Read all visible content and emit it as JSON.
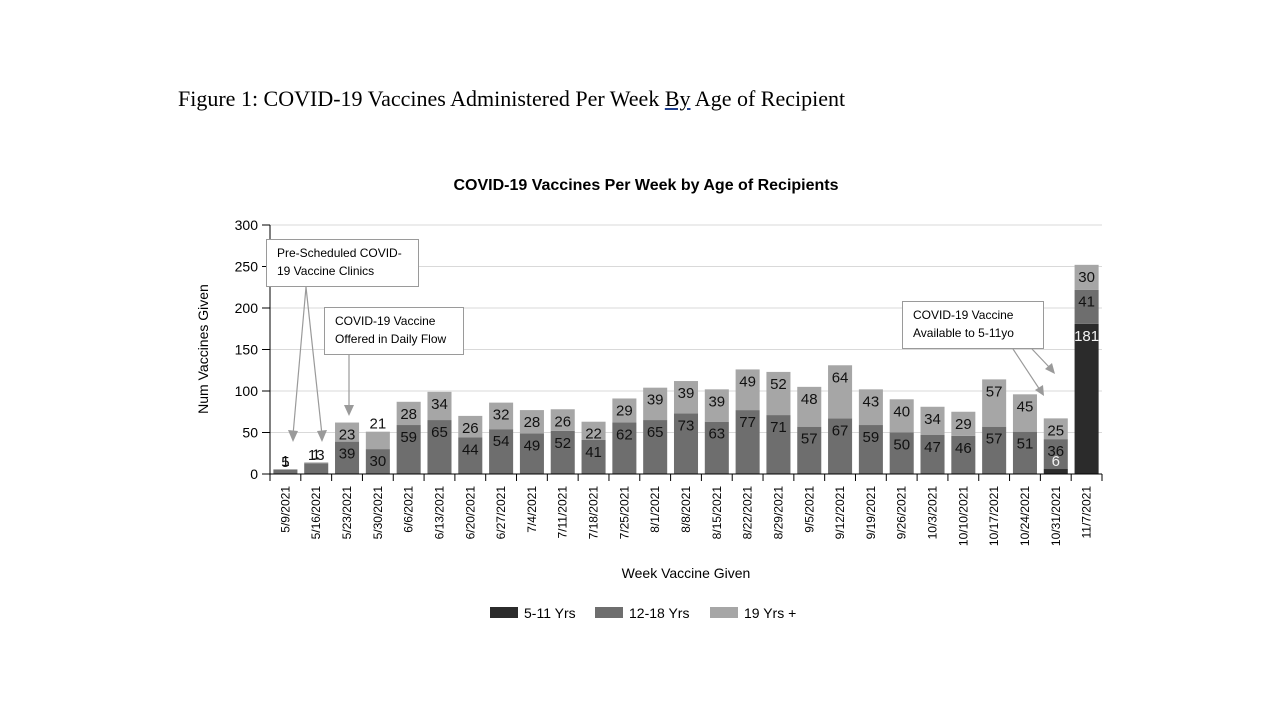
{
  "caption": {
    "before": "Figure 1: COVID-19 Vaccines Administered Per Week ",
    "underlined": "By",
    "after": " Age of Recipient"
  },
  "annotations": {
    "pre_scheduled": "Pre-Scheduled COVID-19 Vaccine Clinics",
    "daily_flow": "COVID-19 Vaccine Offered in Daily Flow",
    "age_5_11": "COVID-19 Vaccine Available to 5-11yo"
  },
  "colors": {
    "5-11 Yrs": "#2b2b2b",
    "12-18 Yrs": "#6e6e6e",
    "19 Yrs +": "#a6a6a6",
    "grid": "#d9d9d9",
    "axis": "#000000"
  },
  "chart_data": {
    "type": "bar",
    "stacked": true,
    "title": "COVID-19 Vaccines Per Week by Age of Recipients",
    "xlabel": "Week Vaccine Given",
    "ylabel": "Num Vaccines Given",
    "ylim": [
      0,
      300
    ],
    "yticks": [
      0,
      50,
      100,
      150,
      200,
      250,
      300
    ],
    "grid": true,
    "legend_position": "bottom",
    "categories": [
      "5/9/2021",
      "5/16/2021",
      "5/23/2021",
      "5/30/2021",
      "6/6/2021",
      "6/13/2021",
      "6/20/2021",
      "6/27/2021",
      "7/4/2021",
      "7/11/2021",
      "7/18/2021",
      "7/25/2021",
      "8/1/2021",
      "8/8/2021",
      "8/15/2021",
      "8/22/2021",
      "8/29/2021",
      "9/5/2021",
      "9/12/2021",
      "9/19/2021",
      "9/26/2021",
      "10/3/2021",
      "10/10/2021",
      "10/17/2021",
      "10/24/2021",
      "10/31/2021",
      "11/7/2021"
    ],
    "series": [
      {
        "name": "5-11 Yrs",
        "values": [
          0,
          0,
          0,
          0,
          0,
          0,
          0,
          0,
          0,
          0,
          0,
          0,
          0,
          0,
          0,
          0,
          0,
          0,
          0,
          0,
          0,
          0,
          0,
          0,
          0,
          6,
          181
        ]
      },
      {
        "name": "12-18 Yrs",
        "values": [
          5,
          13,
          39,
          30,
          59,
          65,
          44,
          54,
          49,
          52,
          41,
          62,
          65,
          73,
          63,
          77,
          71,
          57,
          67,
          59,
          50,
          47,
          46,
          57,
          51,
          36,
          41
        ]
      },
      {
        "name": "19 Yrs +",
        "values": [
          1,
          1,
          23,
          21,
          28,
          34,
          26,
          32,
          28,
          26,
          22,
          29,
          39,
          39,
          39,
          49,
          52,
          48,
          64,
          43,
          40,
          34,
          29,
          57,
          45,
          25,
          30
        ]
      }
    ]
  }
}
